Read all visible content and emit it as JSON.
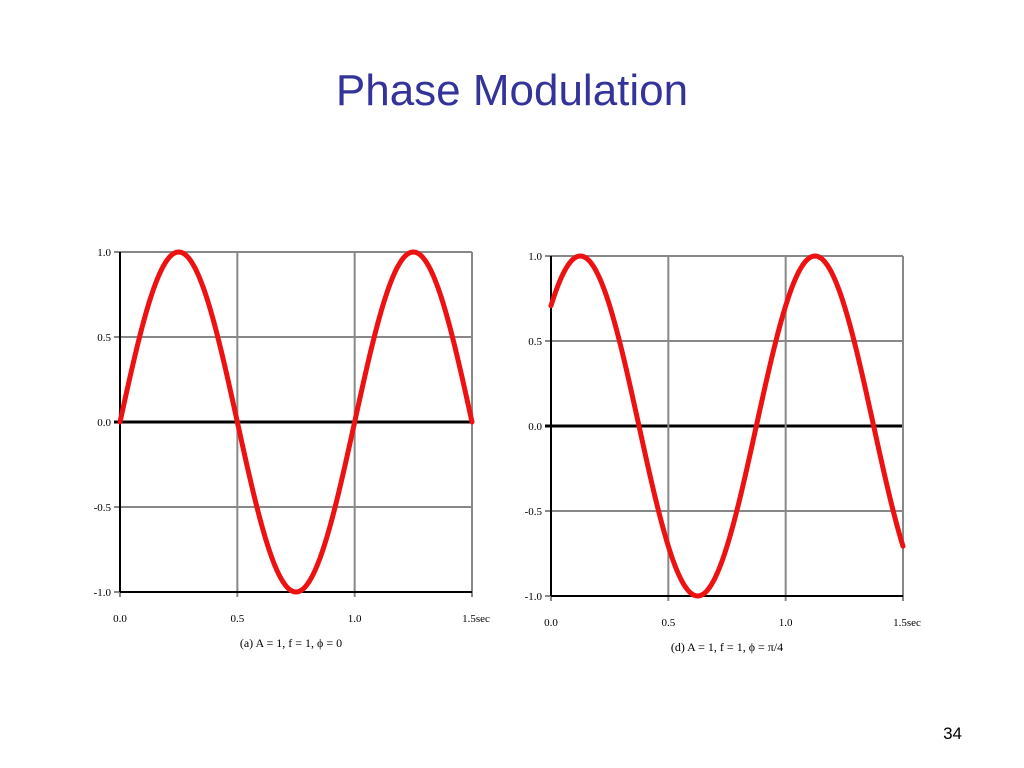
{
  "slide": {
    "title": "Phase Modulation",
    "number": "34"
  },
  "colors": {
    "title": "#333399",
    "curve": "#ee1111",
    "grid": "#888888",
    "axis": "#000000"
  },
  "chart_data": [
    {
      "type": "line",
      "caption": "(a) A = 1, f = 1, ϕ = 0",
      "series": [
        {
          "amplitude": 1,
          "frequency": 1,
          "phase": 0
        }
      ],
      "xlim": [
        0,
        1.5
      ],
      "ylim": [
        -1,
        1
      ],
      "xticks": [
        "0.0",
        "0.5",
        "1.0",
        "1.5sec"
      ],
      "yticks": [
        "1.0",
        "0.5",
        "0.0",
        "-0.5",
        "-1.0"
      ],
      "grid": true
    },
    {
      "type": "line",
      "caption": "(d) A = 1, f = 1, ϕ = π/4",
      "series": [
        {
          "amplitude": 1,
          "frequency": 1,
          "phase": 0.7854
        }
      ],
      "xlim": [
        0,
        1.5
      ],
      "ylim": [
        -1,
        1
      ],
      "xticks": [
        "0.0",
        "0.5",
        "1.0",
        "1.5sec"
      ],
      "yticks": [
        "1.0",
        "0.5",
        "0.0",
        "-0.5",
        "-1.0"
      ],
      "grid": true
    }
  ]
}
